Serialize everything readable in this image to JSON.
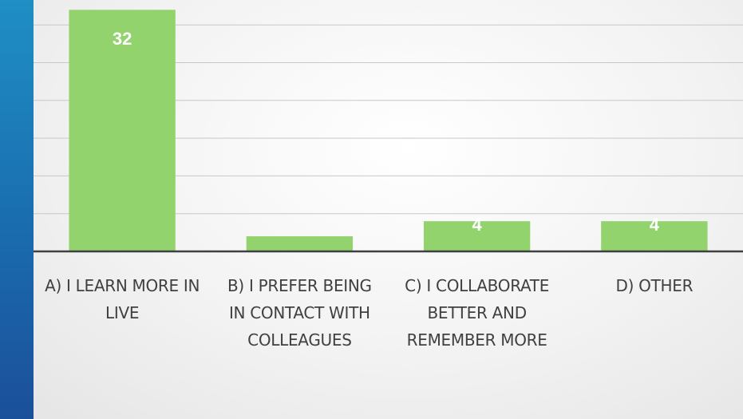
{
  "chart_data": {
    "type": "bar",
    "categories": [
      "A) I LEARN MORE IN LIVE",
      "B) I PREFER BEING IN CONTACT WITH COLLEAGUES",
      "C) I COLLABORATE BETTER AND REMEMBER MORE",
      "D) OTHER"
    ],
    "values": [
      32,
      2,
      4,
      4
    ],
    "value_labels": [
      "32",
      null,
      "4",
      "4"
    ],
    "color": "#92d36e",
    "ylim": [
      0,
      33.3
    ],
    "yticks": [
      0,
      5,
      10,
      15,
      20,
      25,
      30
    ],
    "grid": true
  }
}
